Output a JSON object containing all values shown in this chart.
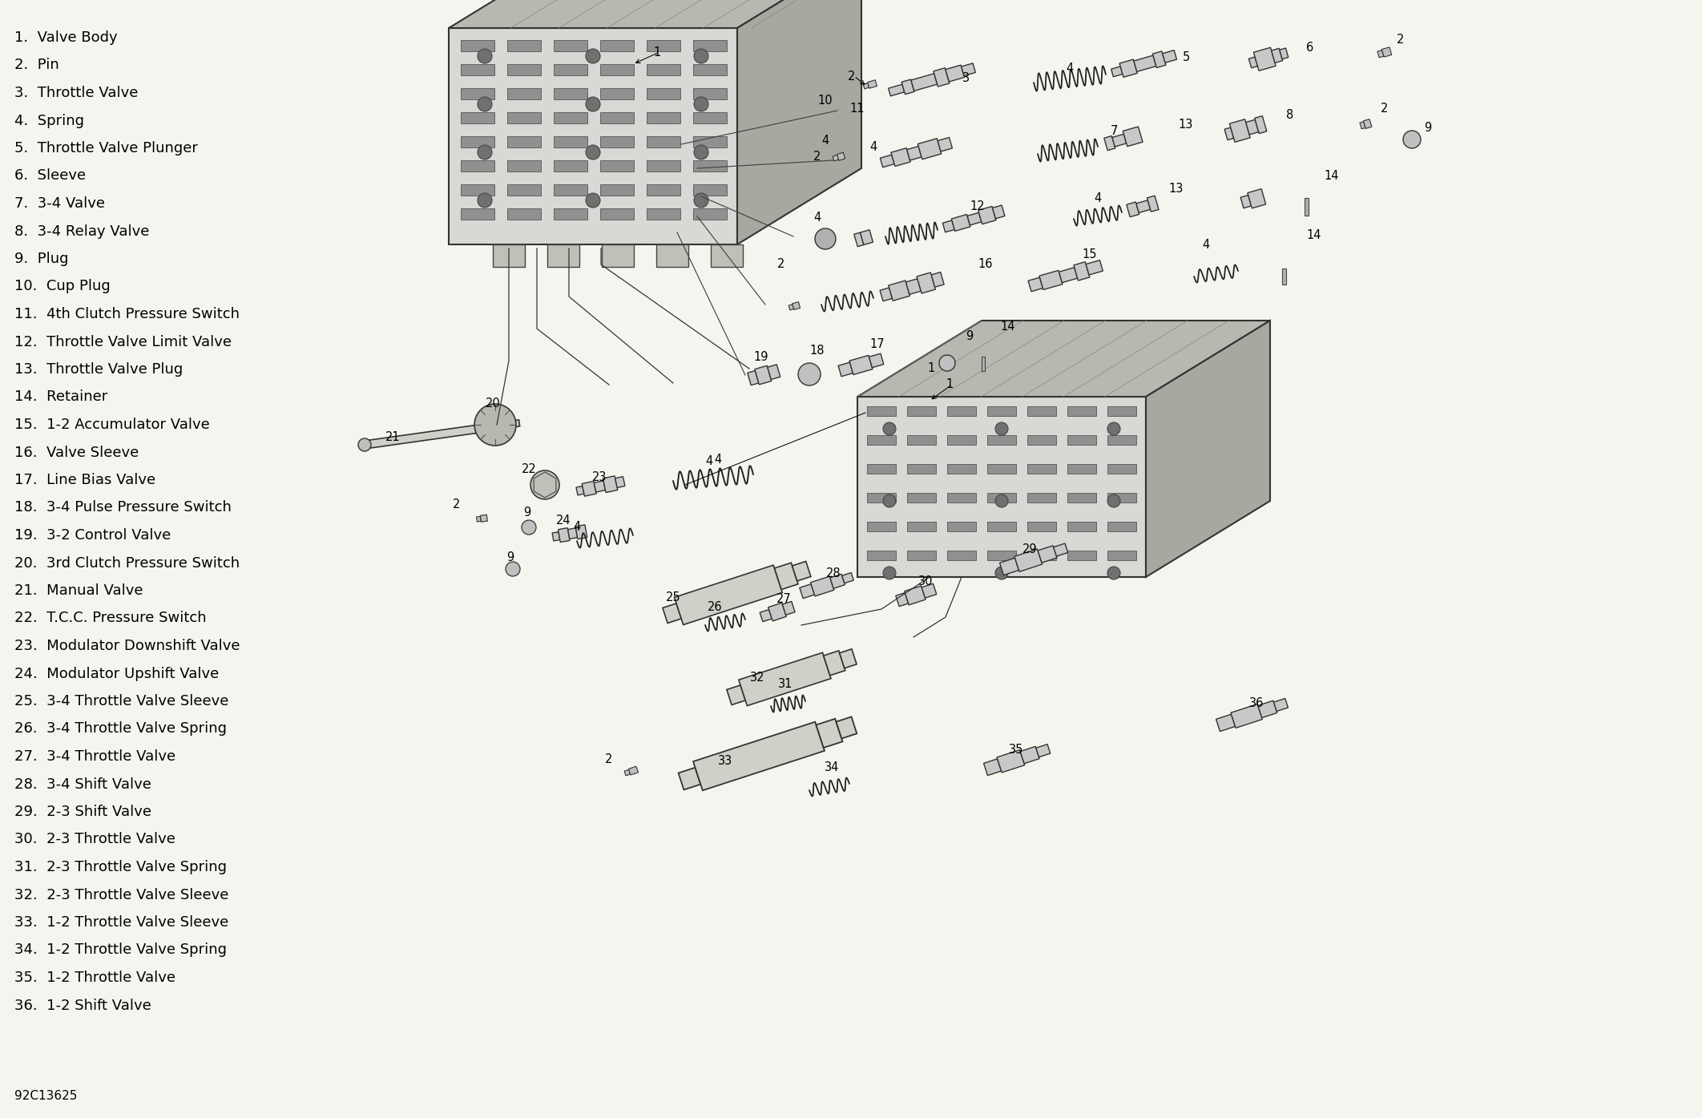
{
  "background_color": "#f5f5f0",
  "parts": [
    "1.  Valve Body",
    "2.  Pin",
    "3.  Throttle Valve",
    "4.  Spring",
    "5.  Throttle Valve Plunger",
    "6.  Sleeve",
    "7.  3-4 Valve",
    "8.  3-4 Relay Valve",
    "9.  Plug",
    "10.  Cup Plug",
    "11.  4th Clutch Pressure Switch",
    "12.  Throttle Valve Limit Valve",
    "13.  Throttle Valve Plug",
    "14.  Retainer",
    "15.  1-2 Accumulator Valve",
    "16.  Valve Sleeve",
    "17.  Line Bias Valve",
    "18.  3-4 Pulse Pressure Switch",
    "19.  3-2 Control Valve",
    "20.  3rd Clutch Pressure Switch",
    "21.  Manual Valve",
    "22.  T.C.C. Pressure Switch",
    "23.  Modulator Downshift Valve",
    "24.  Modulator Upshift Valve",
    "25.  3-4 Throttle Valve Sleeve",
    "26.  3-4 Throttle Valve Spring",
    "27.  3-4 Throttle Valve",
    "28.  3-4 Shift Valve",
    "29.  2-3 Shift Valve",
    "30.  2-3 Throttle Valve",
    "31.  2-3 Throttle Valve Spring",
    "32.  2-3 Throttle Valve Sleeve",
    "33.  1-2 Throttle Valve Sleeve",
    "34.  1-2 Throttle Valve Spring",
    "35.  1-2 Throttle Valve",
    "36.  1-2 Shift Valve"
  ],
  "source_label": "92C13625",
  "text_color": "#000000",
  "legend_fontsize": 13,
  "source_fontsize": 11
}
